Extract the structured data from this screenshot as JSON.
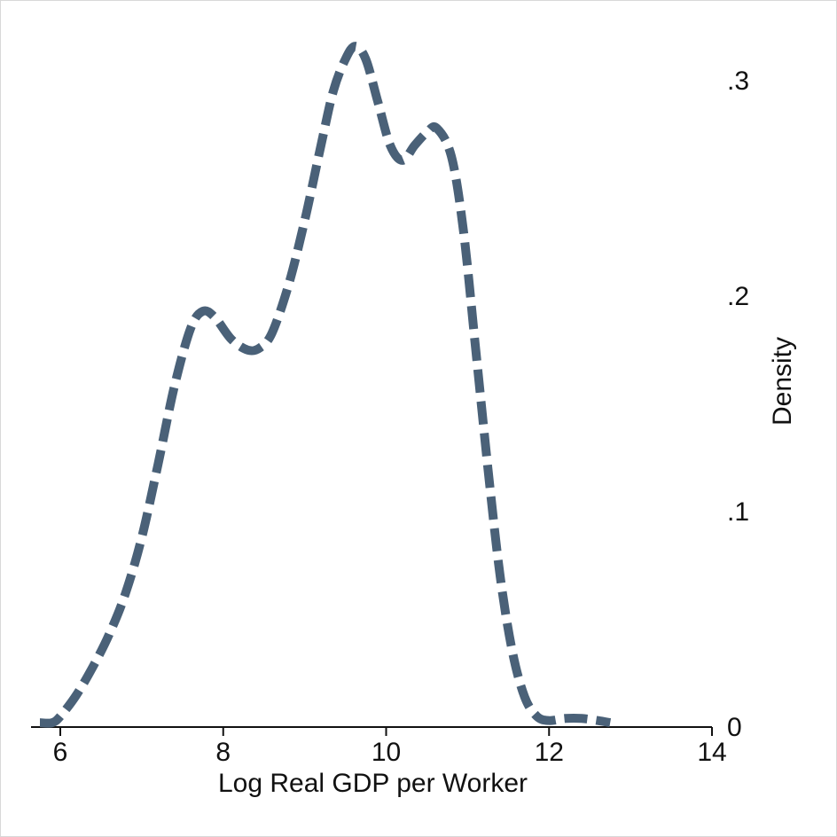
{
  "chart_data": {
    "type": "line",
    "title": "",
    "xlabel": "Log Real GDP per Worker",
    "ylabel": "Density",
    "xlim": [
      5.7,
      14
    ],
    "ylim": [
      0,
      0.32
    ],
    "x_ticks": [
      6,
      8,
      10,
      12,
      14
    ],
    "x_tick_labels": [
      "6",
      "8",
      "10",
      "12",
      "14"
    ],
    "y_ticks": [
      0,
      0.1,
      0.2,
      0.3
    ],
    "y_tick_labels": [
      "0",
      ".1",
      ".2",
      ".3"
    ],
    "y_axis_position": "right",
    "grid": false,
    "legend": "none",
    "line_style": "dashed",
    "series": [
      {
        "color": "#4a6178",
        "x": [
          5.75,
          5.9,
          6.0,
          6.2,
          6.4,
          6.6,
          6.8,
          7.0,
          7.2,
          7.4,
          7.6,
          7.75,
          7.9,
          8.1,
          8.3,
          8.45,
          8.6,
          8.8,
          9.0,
          9.2,
          9.35,
          9.5,
          9.62,
          9.75,
          9.9,
          10.05,
          10.2,
          10.35,
          10.5,
          10.62,
          10.8,
          10.95,
          11.1,
          11.25,
          11.4,
          11.55,
          11.7,
          11.85,
          12.0,
          12.2,
          12.4,
          12.6,
          12.75
        ],
        "y": [
          0.002,
          0.002,
          0.005,
          0.015,
          0.028,
          0.043,
          0.062,
          0.088,
          0.122,
          0.158,
          0.185,
          0.193,
          0.19,
          0.18,
          0.175,
          0.176,
          0.183,
          0.205,
          0.235,
          0.27,
          0.295,
          0.31,
          0.316,
          0.31,
          0.29,
          0.27,
          0.263,
          0.27,
          0.276,
          0.278,
          0.265,
          0.23,
          0.175,
          0.12,
          0.07,
          0.035,
          0.014,
          0.005,
          0.003,
          0.004,
          0.004,
          0.003,
          0.002
        ]
      }
    ]
  }
}
